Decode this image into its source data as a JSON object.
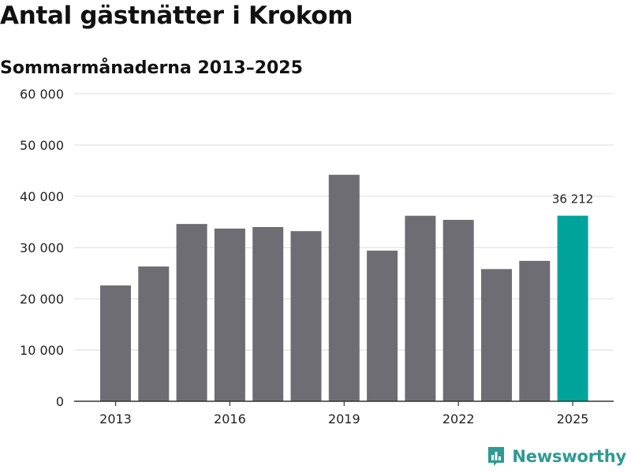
{
  "chart_data": {
    "type": "bar",
    "title": "Antal gästnätter i Krokom",
    "subtitle": "Sommarmånaderna 2013–2025",
    "categories": [
      "2013",
      "2014",
      "2015",
      "2016",
      "2017",
      "2018",
      "2019",
      "2020",
      "2021",
      "2022",
      "2023",
      "2024",
      "2025"
    ],
    "values": [
      22600,
      26300,
      34600,
      33700,
      34000,
      33200,
      44200,
      29400,
      36200,
      35400,
      25800,
      27400,
      36212
    ],
    "x_tick_labels": [
      "2013",
      "2016",
      "2019",
      "2022",
      "2025"
    ],
    "y_tick_labels": [
      "0",
      "10 000",
      "20 000",
      "30 000",
      "40 000",
      "50 000",
      "60 000"
    ],
    "y_ticks": [
      0,
      10000,
      20000,
      30000,
      40000,
      50000,
      60000
    ],
    "ylim": [
      0,
      60000
    ],
    "grid": "horizontal",
    "bar_color": "#6e6d73",
    "highlight_color": "#00a39a",
    "highlight_index": 12,
    "annotation": {
      "index": 12,
      "text": "36 212"
    }
  },
  "brand": {
    "name": "Newsworthy",
    "icon": "newsworthy-logo-icon",
    "color": "#2e9a93"
  }
}
